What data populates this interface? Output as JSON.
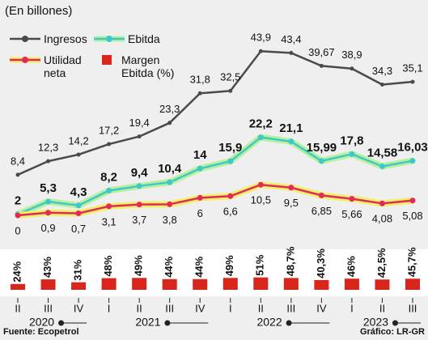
{
  "chart_data": {
    "type": "line",
    "title": "(En billones)",
    "categories": [
      "II",
      "III",
      "IV",
      "I",
      "II",
      "III",
      "IV",
      "I",
      "II",
      "III",
      "IV",
      "I",
      "II",
      "III"
    ],
    "category_years": [
      "2020",
      "2020",
      "2020",
      "2021",
      "2021",
      "2021",
      "2021",
      "2022",
      "2022",
      "2022",
      "2022",
      "2023",
      "2023",
      "2023"
    ],
    "series": [
      {
        "name": "Ingresos",
        "color": "#4a4a4a",
        "values": [
          8.4,
          12.3,
          14.2,
          17.2,
          19.4,
          23.3,
          31.8,
          32.5,
          43.9,
          43.4,
          39.67,
          38.9,
          34.3,
          35.1
        ],
        "value_labels": [
          "8,4",
          "12,3",
          "14,2",
          "17,2",
          "19,4",
          "23,3",
          "31,8",
          "32,5",
          "43,9",
          "43,4",
          "39,67",
          "38,9",
          "34,3",
          "35,1"
        ]
      },
      {
        "name": "Ebitda",
        "color": "#3fc9c6",
        "values": [
          2,
          5.3,
          4.3,
          8.2,
          9.4,
          10.4,
          14,
          15.9,
          22.2,
          21.1,
          15.99,
          17.8,
          14.58,
          16.03
        ],
        "value_labels": [
          "2",
          "5,3",
          "4,3",
          "8,2",
          "9,4",
          "10,4",
          "14",
          "15,9",
          "22,2",
          "21,1",
          "15,99",
          "17,8",
          "14,58",
          "16,03"
        ]
      },
      {
        "name": "Utilidad neta",
        "color": "#e02a5a",
        "values": [
          0,
          0.9,
          0.7,
          3.1,
          3.7,
          3.8,
          6,
          6.6,
          10.5,
          9.5,
          6.85,
          5.66,
          4.08,
          5.08
        ],
        "value_labels": [
          "0",
          "0,9",
          "0,7",
          "3,1",
          "3,7",
          "3,8",
          "6",
          "6,6",
          "10,5",
          "9,5",
          "6,85",
          "5,66",
          "4,08",
          "5,08"
        ]
      }
    ],
    "bars": {
      "name": "Margen Ebitda (%)",
      "color": "#d9261c",
      "values": [
        24,
        43,
        31,
        48,
        49,
        44,
        44,
        49,
        51,
        48.7,
        40.3,
        46,
        42.5,
        45.7
      ],
      "value_labels": [
        "24%",
        "43%",
        "31%",
        "48%",
        "49%",
        "44%",
        "44%",
        "49%",
        "51%",
        "48,7%",
        "40,3%",
        "46%",
        "42,5%",
        "45,7%"
      ]
    },
    "source": "Fuente: Ecopetrol",
    "credit": "Gráfico: LR-GR"
  }
}
